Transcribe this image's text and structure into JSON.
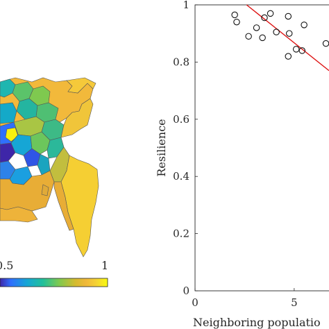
{
  "chart_data": [
    {
      "type": "choropleth-map",
      "region": "",
      "colorbar": {
        "colormap": "parula",
        "tick_labels": [
          "0.5",
          "1"
        ],
        "colors": [
          "#3e26a8",
          "#2f6ffd",
          "#16a6d5",
          "#21c09a",
          "#7fc94f",
          "#d4bb2e",
          "#f0b83a",
          "#f5d434",
          "#f9fb0e"
        ]
      }
    },
    {
      "type": "scatter",
      "title": "",
      "xlabel": "Neighboring populatio",
      "ylabel": "Resilience",
      "xlim": [
        0,
        7
      ],
      "ylim": [
        0,
        1
      ],
      "x_ticks": [
        0,
        5
      ],
      "y_ticks": [
        0,
        0.2,
        0.4,
        0.6,
        0.8,
        1
      ],
      "x_tick_labels": [
        "0",
        "5"
      ],
      "y_tick_labels": [
        "0",
        "0.2",
        "0.4",
        "0.6",
        "0.8",
        "1"
      ],
      "points": [
        {
          "x": 2.0,
          "y": 0.965
        },
        {
          "x": 2.1,
          "y": 0.94
        },
        {
          "x": 2.7,
          "y": 0.89
        },
        {
          "x": 3.1,
          "y": 0.92
        },
        {
          "x": 3.4,
          "y": 0.885
        },
        {
          "x": 3.5,
          "y": 0.955
        },
        {
          "x": 3.8,
          "y": 0.97
        },
        {
          "x": 4.1,
          "y": 0.905
        },
        {
          "x": 4.7,
          "y": 0.96
        },
        {
          "x": 4.75,
          "y": 0.9
        },
        {
          "x": 4.7,
          "y": 0.82
        },
        {
          "x": 5.1,
          "y": 0.845
        },
        {
          "x": 5.4,
          "y": 0.84
        },
        {
          "x": 5.5,
          "y": 0.93
        },
        {
          "x": 6.6,
          "y": 0.865
        }
      ],
      "fit_line": {
        "x": [
          2.6,
          7.0
        ],
        "y": [
          1.0,
          0.77
        ],
        "color": "#dd1111"
      },
      "marker": "open-circle",
      "grid": false
    }
  ]
}
